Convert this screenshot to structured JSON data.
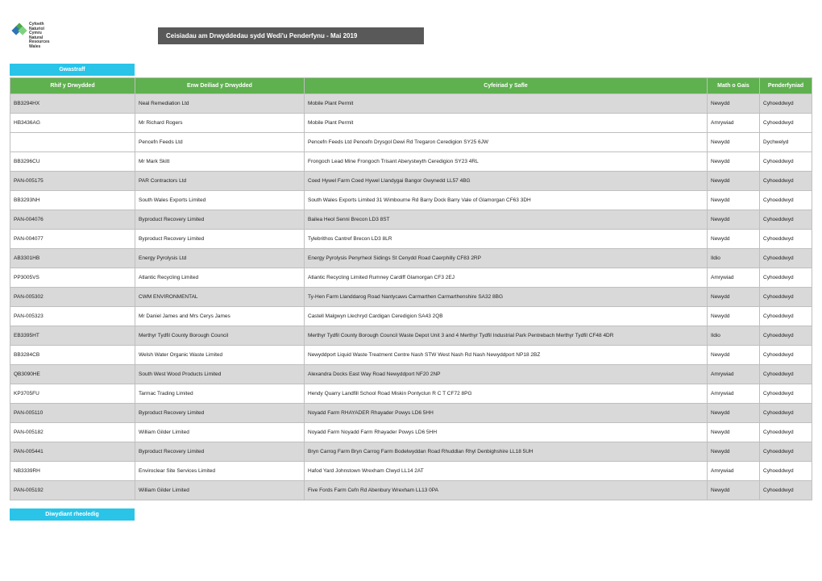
{
  "logo_lines": [
    "Cyfoeth",
    "Naturiol",
    "Cymru",
    "Natural",
    "Resources",
    "Wales"
  ],
  "title": "Ceisiadau am Drwyddedau sydd Wedi'u Penderfynu - Mai 2019",
  "tab_label": "Gwastraff",
  "footer_tab": "Diwydiant rheoledig",
  "columns": [
    "Rhif y Drwydded",
    "Enw Deiliad y Drwydded",
    "Cyfeiriad y Safle",
    "Math o Gais",
    "Penderfyniad"
  ],
  "rows": [
    {
      "shade": true,
      "c": [
        "BB3294HX",
        "Neal Remediation Ltd",
        "Mobile Plant Permit",
        "Newydd",
        "Cyhoeddwyd"
      ]
    },
    {
      "shade": false,
      "c": [
        "HB3436AG",
        "Mr Richard Rogers",
        "Mobile Plant Permit",
        "Amrywiad",
        "Cyhoeddwyd"
      ]
    },
    {
      "shade": false,
      "c": [
        "",
        "Pencefn Feeds Ltd",
        "Pencefn Feeds Ltd Pencefn Drysgol Dewi Rd  Tregaron  Ceredigion SY25 6JW",
        "Newydd",
        "Dychwelyd"
      ]
    },
    {
      "shade": false,
      "c": [
        "BB3296CU",
        "Mr Mark Skitt",
        "Frongoch Lead Mine Frongoch Trisant  Aberystwyth Ceredigion SY23 4RL",
        "Newydd",
        "Cyhoeddwyd"
      ]
    },
    {
      "shade": true,
      "c": [
        "PAN-005175",
        "PAR Contractors Ltd",
        "Coed Hywel Farm Coed Hywel Llandygai  Bangor Gwynedd LL57 4BG",
        "Newydd",
        "Cyhoeddwyd"
      ]
    },
    {
      "shade": false,
      "c": [
        "BB3293NH",
        "South Wales Exports Limited",
        "South Wales Exports Limited 31 Wimbourne Rd  Barry Dock Barry Vale of Glamorgan CF63 3DH",
        "Newydd",
        "Cyhoeddwyd"
      ]
    },
    {
      "shade": true,
      "c": [
        "PAN-004076",
        "Byproduct Recovery Limited",
        "Bailea Heol Senni Brecon  LD3 8ST",
        "Newydd",
        "Cyhoeddwyd"
      ]
    },
    {
      "shade": false,
      "c": [
        "PAN-004077",
        "Byproduct Recovery Limited",
        "Tylebrithos Cantref Brecon  LD3 8LR",
        "Newydd",
        "Cyhoeddwyd"
      ]
    },
    {
      "shade": true,
      "c": [
        "AB3301HB",
        "Energy Pyrolysis Ltd",
        "Energy Pyrolysis Penyrheol Sidings St Cenydd Road  Caerphilly  CF83 2RP",
        "Ildio",
        "Cyhoeddwyd"
      ]
    },
    {
      "shade": false,
      "c": [
        "PP3005VS",
        "Atlantic Recycling Limited",
        "Atlantic Recycling Limited Rumney Cardiff Glamorgan CF3 2EJ",
        "Amrywiad",
        "Cyhoeddwyd"
      ]
    },
    {
      "shade": true,
      "c": [
        "PAN-005302",
        "CWM ENVIRONMENTAL",
        "Ty-Hen Farm Llanddarog Road Nantycaws  Carmarthen Carmarthenshire SA32 8BG",
        "Newydd",
        "Cyhoeddwyd"
      ]
    },
    {
      "shade": false,
      "c": [
        "PAN-005323",
        "Mr Daniel James and Mrs Cerys James",
        "Castell Malgwyn Llechryd Cardigan  Ceredigion  SA43 2QB",
        "Newydd",
        "Cyhoeddwyd"
      ]
    },
    {
      "shade": true,
      "c": [
        "EB3395HT",
        "Merthyr Tydfil County Borough Council",
        "Merthyr Tydfil County Borough Council Waste Depot Unit 3 and 4 Merthyr Tydfil Industrial Park Pentrebach Merthyr Tydfil  CF48 4DR",
        "Ildio",
        "Cyhoeddwyd"
      ]
    },
    {
      "shade": false,
      "c": [
        "BB3284CB",
        "Welsh Water Organic Waste Limited",
        "Newyddport Liquid Waste Treatment Centre Nash STW West Nash Rd  Nash Newyddport  NP18 2BZ",
        "Newydd",
        "Cyhoeddwyd"
      ]
    },
    {
      "shade": true,
      "c": [
        "QB3090HE",
        "South West Wood Products Limited",
        "Alexandra Docks East Way Road Newyddport  NF20 2NP",
        "Amrywiad",
        "Cyhoeddwyd"
      ]
    },
    {
      "shade": false,
      "c": [
        "KP3705FU",
        "Tarmac Trading Limited",
        "Hendy Quarry Landfill School Road Miskin  Pontyclun R C T CF72 8PG",
        "Amrywiad",
        "Cyhoeddwyd"
      ]
    },
    {
      "shade": true,
      "c": [
        "PAN-005110",
        "Byproduct Recovery Limited",
        "Noyadd Farm RHAYADER Rhayader Powys LD6 5HH",
        "Newydd",
        "Cyhoeddwyd"
      ]
    },
    {
      "shade": false,
      "c": [
        "PAN-005182",
        "William Gilder Limited",
        "Noyadd Farm Noyadd Farm Rhayader Powys LD6 5HH",
        "Newydd",
        "Cyhoeddwyd"
      ]
    },
    {
      "shade": true,
      "c": [
        "PAN-005441",
        "Byproduct Recovery Limited",
        "Bryn Carrog Farm Bryn Carrog Farm Bodelwyddan Road Rhuddlan Rhyl Denbighshire LL18 5UH",
        "Newydd",
        "Cyhoeddwyd"
      ]
    },
    {
      "shade": false,
      "c": [
        "NB3339RH",
        "Enviroclear Site Services Limited",
        "Hafod Yard Johnstown Wrexham Clwyd LL14 2AT",
        "Amrywiad",
        "Cyhoeddwyd"
      ]
    },
    {
      "shade": true,
      "c": [
        "PAN-005192",
        "William Gilder Limited",
        "Five Fords Farm Cefn Rd Abenbury  Wrexham  LL13 0PA",
        "Newydd",
        "Cyhoeddwyd"
      ]
    }
  ]
}
